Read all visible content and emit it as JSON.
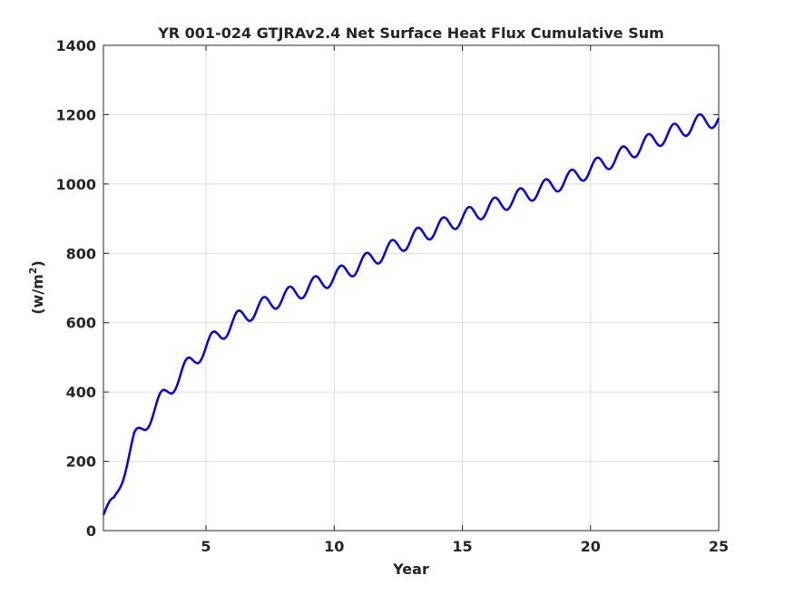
{
  "chart_data": {
    "type": "line",
    "title": "YR 001-024 GTJRAv2.4 Net Surface Heat Flux  Cumulative Sum",
    "xlabel": "Year",
    "ylabel_base": "(w/m",
    "ylabel_sup": "2",
    "ylabel_end": ")",
    "xlim": [
      1,
      25
    ],
    "ylim": [
      0,
      1400
    ],
    "xticks": [
      5,
      10,
      15,
      20,
      25
    ],
    "yticks": [
      0,
      200,
      400,
      600,
      800,
      1000,
      1200,
      1400
    ],
    "grid": true,
    "line_color": "#0000ff",
    "series": [
      {
        "name": "",
        "x_start": 1.0,
        "x_step": 0.02,
        "trend_anchors": {
          "x": [
            1.0,
            1.4,
            2.2,
            3.2,
            4.2,
            5.2,
            6.2,
            7.2,
            8.2,
            9.2,
            10.2,
            11.2,
            12.2,
            13.2,
            14.2,
            15.2,
            16.2,
            17.2,
            18.2,
            19.2,
            20.2,
            21.2,
            22.2,
            23.2,
            24.2,
            25.0
          ],
          "y": [
            45,
            85,
            260,
            372,
            468,
            545,
            608,
            648,
            678,
            708,
            738,
            775,
            812,
            848,
            878,
            908,
            935,
            962,
            988,
            1015,
            1050,
            1082,
            1118,
            1148,
            1176,
            1190
          ]
        },
        "seasonal_amplitude": {
          "x": [
            1.0,
            2.2,
            3.2,
            5.0,
            25.0
          ],
          "y": [
            14,
            24,
            24,
            24,
            24
          ]
        },
        "seasonal_period": 1.0,
        "seasonal_phase_peak": 0.25
      }
    ]
  }
}
